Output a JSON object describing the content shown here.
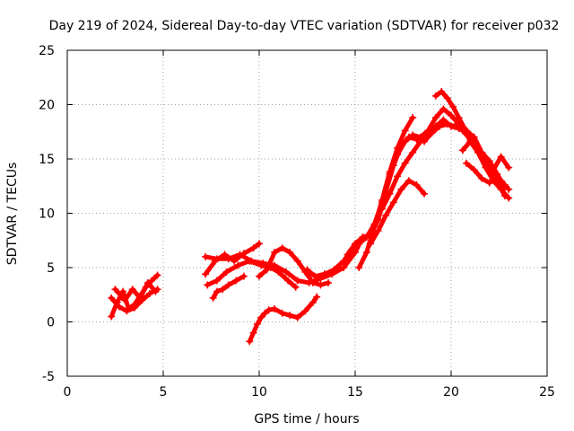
{
  "chart_data": {
    "type": "scatter",
    "title": "Day 219 of 2024, Sidereal Day-to-day VTEC variation (SDTVAR) for receiver p032",
    "xlabel": "GPS time / hours",
    "ylabel": "SDTVAR / TECUs",
    "xlim": [
      0,
      25
    ],
    "ylim": [
      -5,
      25
    ],
    "xticks": [
      0,
      5,
      10,
      15,
      20,
      25
    ],
    "yticks": [
      -5,
      0,
      5,
      10,
      15,
      20,
      25
    ],
    "grid": true,
    "marker": "plus",
    "color": "#ff0000",
    "series": [
      {
        "x": [
          2.3,
          2.6,
          2.9,
          3.2,
          3.5,
          3.8,
          4.1,
          4.4,
          4.7
        ],
        "y": [
          0.5,
          1.8,
          2.8,
          1.2,
          1.6,
          2.4,
          3.2,
          3.8,
          4.3
        ]
      },
      {
        "x": [
          2.3,
          2.7,
          3.1,
          3.5,
          3.9,
          4.3,
          4.7
        ],
        "y": [
          2.2,
          1.4,
          1.0,
          1.3,
          2.0,
          2.6,
          3.0
        ]
      },
      {
        "x": [
          2.5,
          3.0,
          3.4,
          3.8,
          4.2,
          4.6
        ],
        "y": [
          3.0,
          2.0,
          3.0,
          2.2,
          3.6,
          2.8
        ]
      },
      {
        "x": [
          7.2,
          7.8,
          8.4,
          9.0,
          9.6,
          10.2,
          10.8,
          11.4,
          12.0,
          12.6,
          13.2,
          13.8,
          14.4,
          15.0,
          15.4
        ],
        "y": [
          6.0,
          5.8,
          5.8,
          6.2,
          5.6,
          5.4,
          5.2,
          4.6,
          3.8,
          3.6,
          4.0,
          4.4,
          5.0,
          6.4,
          7.8
        ]
      },
      {
        "x": [
          7.2,
          7.7,
          8.2,
          8.7,
          9.2,
          9.7,
          10.0
        ],
        "y": [
          4.4,
          5.6,
          6.2,
          5.6,
          6.3,
          6.8,
          7.2
        ]
      },
      {
        "x": [
          7.3,
          7.8,
          8.3,
          8.9,
          9.5,
          10.1,
          10.6,
          11.0,
          11.5,
          11.9
        ],
        "y": [
          3.4,
          3.8,
          4.6,
          5.2,
          5.6,
          5.2,
          5.0,
          4.6,
          3.8,
          3.2
        ]
      },
      {
        "x": [
          7.6,
          7.8,
          8.1,
          8.4,
          8.8,
          9.2
        ],
        "y": [
          2.2,
          2.8,
          3.0,
          3.4,
          3.8,
          4.2
        ]
      },
      {
        "x": [
          10.0,
          10.4,
          10.8,
          11.2,
          11.6,
          12.0,
          12.4,
          12.8,
          13.2,
          13.6
        ],
        "y": [
          4.2,
          4.8,
          6.4,
          6.8,
          6.4,
          5.6,
          4.6,
          3.6,
          3.4,
          3.6
        ]
      },
      {
        "x": [
          9.5,
          9.7,
          9.9,
          10.1,
          10.3,
          10.5,
          10.8,
          11.2,
          11.6,
          12.0,
          12.4,
          12.8,
          13.0
        ],
        "y": [
          -1.8,
          -1.0,
          -0.2,
          0.4,
          0.8,
          1.1,
          1.2,
          0.8,
          0.6,
          0.4,
          1.0,
          1.8,
          2.3
        ]
      },
      {
        "x": [
          12.5,
          12.9,
          13.4,
          13.9,
          14.4,
          14.8,
          15.2,
          15.6,
          16.0,
          16.4,
          16.8,
          17.2,
          17.6,
          18.0,
          18.4,
          18.8,
          19.2,
          19.6,
          20.0,
          20.4,
          20.8,
          21.2,
          21.6,
          22.0,
          22.4,
          22.8
        ],
        "y": [
          4.8,
          4.2,
          4.4,
          4.8,
          5.6,
          6.6,
          7.2,
          7.8,
          9.0,
          11.0,
          13.6,
          15.4,
          16.6,
          17.2,
          17.0,
          17.6,
          18.8,
          19.6,
          19.0,
          18.2,
          17.4,
          16.4,
          15.6,
          14.8,
          13.6,
          12.4
        ]
      },
      {
        "x": [
          14.6,
          15.0,
          15.4,
          15.8,
          16.2,
          16.6,
          17.0,
          17.4,
          17.8,
          18.2,
          18.6,
          19.0,
          19.4,
          19.8,
          20.2,
          20.6,
          21.0,
          21.4,
          21.8,
          22.2,
          22.6,
          23.0
        ],
        "y": [
          6.2,
          7.2,
          7.8,
          8.0,
          9.4,
          12.0,
          14.4,
          16.2,
          17.0,
          16.8,
          16.6,
          17.4,
          18.0,
          18.2,
          18.0,
          17.6,
          16.8,
          15.6,
          14.6,
          13.8,
          13.0,
          12.2
        ]
      },
      {
        "x": [
          15.2,
          15.6,
          16.0,
          16.4,
          16.8,
          17.2,
          17.6,
          18.0
        ],
        "y": [
          5.0,
          6.4,
          8.8,
          11.2,
          13.8,
          16.0,
          17.6,
          18.8
        ]
      },
      {
        "x": [
          15.8,
          16.2,
          16.6,
          17.0,
          17.4,
          17.8,
          18.2,
          18.6
        ],
        "y": [
          7.2,
          8.4,
          9.8,
          11.0,
          12.2,
          13.0,
          12.6,
          11.8
        ]
      },
      {
        "x": [
          16.4,
          16.8,
          17.2,
          17.6,
          18.0,
          18.4,
          18.8,
          19.2,
          19.6,
          20.0,
          20.4,
          20.8,
          21.2,
          21.6,
          22.0,
          22.4,
          22.8
        ],
        "y": [
          10.4,
          11.8,
          13.4,
          14.6,
          15.6,
          16.6,
          17.2,
          18.0,
          18.6,
          18.0,
          17.8,
          17.6,
          17.0,
          15.6,
          13.8,
          13.0,
          11.6
        ]
      },
      {
        "x": [
          19.2,
          19.5,
          19.8,
          20.1,
          20.4,
          20.7,
          21.0,
          21.4,
          21.8,
          22.2,
          22.6,
          23.0
        ],
        "y": [
          20.8,
          21.2,
          20.6,
          19.8,
          18.8,
          17.8,
          16.6,
          15.6,
          14.2,
          13.0,
          12.2,
          11.4
        ]
      },
      {
        "x": [
          20.6,
          21.0,
          21.4,
          21.8,
          22.2,
          22.6,
          23.0
        ],
        "y": [
          15.8,
          16.6,
          15.6,
          14.6,
          14.0,
          15.2,
          14.2
        ]
      },
      {
        "x": [
          20.8,
          21.2,
          21.6,
          22.0,
          22.4,
          22.8
        ],
        "y": [
          14.6,
          14.0,
          13.2,
          12.8,
          13.4,
          12.6
        ]
      }
    ]
  }
}
